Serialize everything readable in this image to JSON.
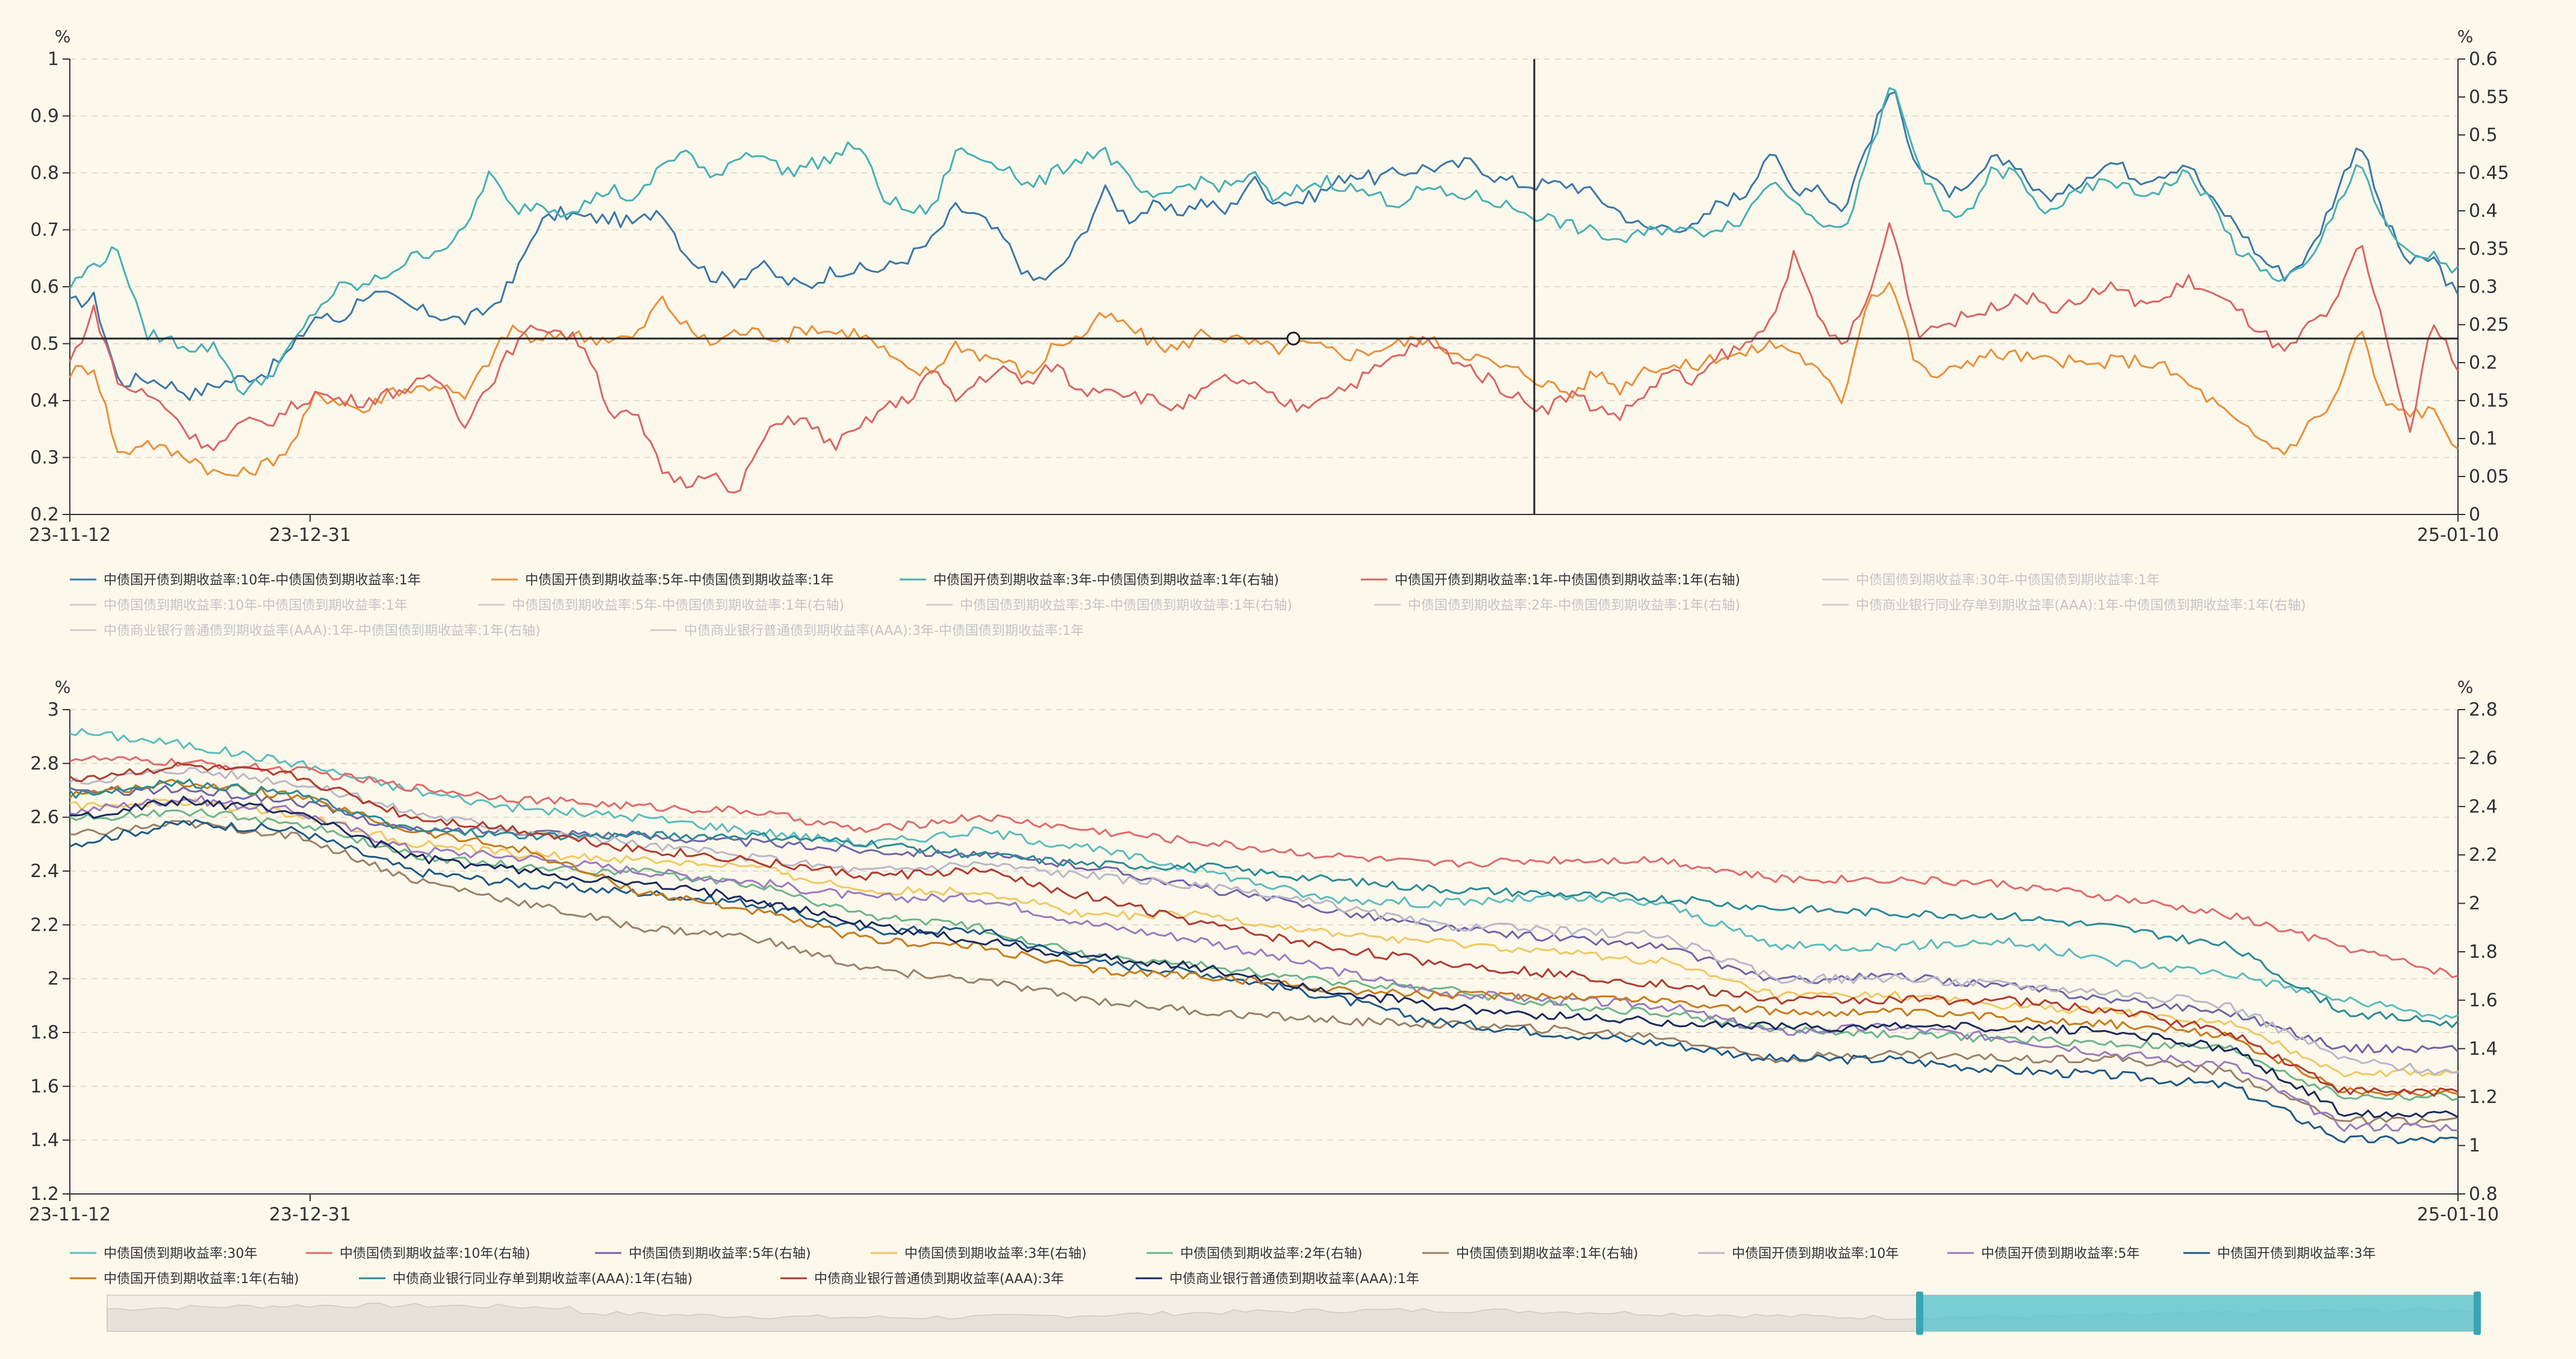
{
  "chart_data": [
    {
      "type": "line",
      "unit_left": "%",
      "unit_right": "%",
      "ylim_left": [
        0.2,
        1.0
      ],
      "yticks_left": [
        "0.2",
        "0.3",
        "0.4",
        "0.5",
        "0.6",
        "0.7",
        "0.8",
        "0.9",
        "1"
      ],
      "ylim_right": [
        0,
        0.6
      ],
      "yticks_right": [
        "0",
        "0.05",
        "0.1",
        "0.15",
        "0.2",
        "0.25",
        "0.3",
        "0.35",
        "0.4",
        "0.45",
        "0.5",
        "0.55",
        "0.6"
      ],
      "xticks": [
        "23-11-12",
        "23-12-31",
        "25-01-10"
      ],
      "x_start": "23-11-12",
      "x_end": "25-01-10",
      "series": [
        {
          "name": "中债国开债到期收益率:10年-中债国债到期收益率:1年",
          "color": "#3a78a8",
          "axis": "left",
          "active": true,
          "anchors": [
            0.57,
            0.58,
            0.43,
            0.44,
            0.43,
            0.41,
            0.43,
            0.44,
            0.45,
            0.49,
            0.55,
            0.54,
            0.59,
            0.58,
            0.56,
            0.55,
            0.54,
            0.56,
            0.61,
            0.71,
            0.73,
            0.72,
            0.72,
            0.71,
            0.74,
            0.66,
            0.62,
            0.61,
            0.64,
            0.61,
            0.6,
            0.63,
            0.63,
            0.63,
            0.65,
            0.68,
            0.74,
            0.72,
            0.68,
            0.61,
            0.62,
            0.68,
            0.77,
            0.72,
            0.74,
            0.73,
            0.75,
            0.73,
            0.79,
            0.75,
            0.75,
            0.77,
            0.8,
            0.79,
            0.8,
            0.81,
            0.81,
            0.82,
            0.79,
            0.78,
            0.78,
            0.78,
            0.76,
            0.73,
            0.7,
            0.71,
            0.7,
            0.75,
            0.76,
            0.84,
            0.77,
            0.78,
            0.73,
            0.85,
            0.95,
            0.82,
            0.77,
            0.76,
            0.82,
            0.82,
            0.76,
            0.76,
            0.8,
            0.82,
            0.79,
            0.8,
            0.82,
            0.75,
            0.71,
            0.65,
            0.62,
            0.66,
            0.76,
            0.86,
            0.72,
            0.64,
            0.65,
            0.58
          ]
        },
        {
          "name": "中债国开债到期收益率:5年-中债国债到期收益率:1年",
          "color": "#e8903a",
          "axis": "left",
          "active": true,
          "anchors": [
            0.45,
            0.46,
            0.3,
            0.33,
            0.31,
            0.3,
            0.27,
            0.27,
            0.29,
            0.32,
            0.41,
            0.4,
            0.38,
            0.42,
            0.42,
            0.43,
            0.4,
            0.47,
            0.53,
            0.5,
            0.52,
            0.51,
            0.51,
            0.51,
            0.58,
            0.53,
            0.5,
            0.52,
            0.52,
            0.51,
            0.53,
            0.52,
            0.52,
            0.49,
            0.45,
            0.45,
            0.5,
            0.48,
            0.47,
            0.44,
            0.5,
            0.51,
            0.55,
            0.53,
            0.5,
            0.49,
            0.52,
            0.51,
            0.5,
            0.49,
            0.5,
            0.49,
            0.48,
            0.49,
            0.5,
            0.51,
            0.49,
            0.48,
            0.46,
            0.45,
            0.43,
            0.41,
            0.45,
            0.42,
            0.46,
            0.46,
            0.46,
            0.48,
            0.48,
            0.5,
            0.49,
            0.45,
            0.4,
            0.58,
            0.61,
            0.46,
            0.44,
            0.47,
            0.48,
            0.48,
            0.47,
            0.47,
            0.46,
            0.47,
            0.47,
            0.46,
            0.43,
            0.4,
            0.36,
            0.33,
            0.31,
            0.36,
            0.4,
            0.53,
            0.39,
            0.38,
            0.38,
            0.32
          ]
        },
        {
          "name": "中债国开债到期收益率:3年-中债国债到期收益率:1年(右轴)",
          "color": "#46b0b4",
          "axis": "right",
          "active": true,
          "anchors": [
            0.3,
            0.33,
            0.35,
            0.24,
            0.23,
            0.22,
            0.22,
            0.16,
            0.18,
            0.22,
            0.27,
            0.3,
            0.3,
            0.32,
            0.34,
            0.35,
            0.37,
            0.45,
            0.4,
            0.41,
            0.4,
            0.41,
            0.43,
            0.41,
            0.46,
            0.48,
            0.44,
            0.47,
            0.48,
            0.45,
            0.46,
            0.47,
            0.49,
            0.42,
            0.4,
            0.4,
            0.48,
            0.47,
            0.46,
            0.43,
            0.45,
            0.47,
            0.48,
            0.44,
            0.41,
            0.43,
            0.44,
            0.43,
            0.45,
            0.41,
            0.43,
            0.44,
            0.43,
            0.42,
            0.41,
            0.43,
            0.42,
            0.42,
            0.41,
            0.4,
            0.39,
            0.38,
            0.37,
            0.36,
            0.37,
            0.38,
            0.37,
            0.38,
            0.39,
            0.44,
            0.42,
            0.39,
            0.37,
            0.46,
            0.57,
            0.47,
            0.4,
            0.39,
            0.45,
            0.45,
            0.4,
            0.41,
            0.43,
            0.44,
            0.42,
            0.43,
            0.45,
            0.41,
            0.35,
            0.32,
            0.31,
            0.33,
            0.4,
            0.47,
            0.38,
            0.34,
            0.34,
            0.32
          ]
        },
        {
          "name": "中债国开债到期收益率:1年-中债国债到期收益率:1年(右轴)",
          "color": "#d96565",
          "axis": "right",
          "active": true,
          "anchors": [
            0.2,
            0.27,
            0.17,
            0.16,
            0.14,
            0.1,
            0.09,
            0.12,
            0.12,
            0.14,
            0.16,
            0.15,
            0.15,
            0.16,
            0.17,
            0.18,
            0.12,
            0.17,
            0.22,
            0.25,
            0.24,
            0.22,
            0.13,
            0.13,
            0.06,
            0.04,
            0.06,
            0.02,
            0.09,
            0.13,
            0.12,
            0.09,
            0.11,
            0.14,
            0.15,
            0.19,
            0.15,
            0.18,
            0.19,
            0.17,
            0.2,
            0.16,
            0.17,
            0.16,
            0.15,
            0.14,
            0.16,
            0.18,
            0.17,
            0.15,
            0.14,
            0.16,
            0.17,
            0.19,
            0.21,
            0.23,
            0.21,
            0.19,
            0.17,
            0.15,
            0.14,
            0.16,
            0.14,
            0.13,
            0.16,
            0.19,
            0.17,
            0.21,
            0.22,
            0.25,
            0.34,
            0.26,
            0.22,
            0.28,
            0.39,
            0.24,
            0.25,
            0.26,
            0.27,
            0.29,
            0.28,
            0.27,
            0.29,
            0.3,
            0.28,
            0.28,
            0.31,
            0.29,
            0.27,
            0.24,
            0.21,
            0.25,
            0.27,
            0.36,
            0.25,
            0.1,
            0.26,
            0.19
          ]
        }
      ],
      "legend_inactive": [
        "中债国债到期收益率:30年-中债国债到期收益率:1年",
        "中债国债到期收益率:10年-中债国债到期收益率:1年",
        "中债国债到期收益率:5年-中债国债到期收益率:1年(右轴)",
        "中债国债到期收益率:3年-中债国债到期收益率:1年(右轴)",
        "中债国债到期收益率:2年-中债国债到期收益率:1年(右轴)",
        "中债商业银行同业存单到期收益率(AAA):1年-中债国债到期收益率:1年(右轴)",
        "中债商业银行普通债到期收益率(AAA):1年-中债国债到期收益率:1年(右轴)",
        "中债商业银行普通债到期收益率(AAA):3年-中债国债到期收益率:1年"
      ]
    },
    {
      "type": "line",
      "unit_left": "%",
      "unit_right": "%",
      "ylim_left": [
        1.2,
        3.0
      ],
      "yticks_left": [
        "1.2",
        "1.4",
        "1.6",
        "1.8",
        "2",
        "2.2",
        "2.4",
        "2.6",
        "2.8",
        "3"
      ],
      "ylim_right": [
        0.8,
        2.8
      ],
      "yticks_right": [
        "0.8",
        "1",
        "1.2",
        "1.4",
        "1.6",
        "1.8",
        "2",
        "2.2",
        "2.4",
        "2.6",
        "2.8"
      ],
      "xticks": [
        "23-11-12",
        "23-12-31",
        "25-01-10"
      ],
      "x_start": "23-11-12",
      "x_end": "25-01-10",
      "series": [
        {
          "name": "中债国债到期收益率:30年",
          "color": "#5bbcbc",
          "axis": "left",
          "base": [
            2.92,
            2.87,
            2.8,
            2.7,
            2.63,
            2.6,
            2.55,
            2.5,
            2.55,
            2.48,
            2.4,
            2.3,
            2.28,
            2.3,
            2.28,
            2.12,
            2.12,
            2.14,
            2.06,
            2.02,
            1.92,
            1.85
          ]
        },
        {
          "name": "中债国债到期收益率:10年(右轴)",
          "color": "#e06a6a",
          "axis": "right",
          "base": [
            2.6,
            2.58,
            2.55,
            2.48,
            2.43,
            2.4,
            2.38,
            2.3,
            2.36,
            2.3,
            2.25,
            2.2,
            2.16,
            2.18,
            2.18,
            2.1,
            2.1,
            2.08,
            2.02,
            1.95,
            1.82,
            1.7
          ]
        },
        {
          "name": "中债国债到期收益率:5年(右轴)",
          "color": "#6f64a8",
          "axis": "right",
          "base": [
            2.46,
            2.47,
            2.42,
            2.3,
            2.3,
            2.28,
            2.25,
            2.22,
            2.2,
            2.15,
            2.06,
            1.98,
            1.9,
            1.86,
            1.82,
            1.68,
            1.7,
            1.66,
            1.6,
            1.55,
            1.4,
            1.4
          ]
        },
        {
          "name": "中债国债到期收益率:3年(右轴)",
          "color": "#f0c860",
          "axis": "right",
          "base": [
            2.4,
            2.42,
            2.37,
            2.25,
            2.2,
            2.18,
            2.15,
            2.05,
            2.05,
            1.95,
            1.95,
            1.88,
            1.84,
            1.8,
            1.76,
            1.62,
            1.62,
            1.58,
            1.55,
            1.5,
            1.3,
            1.3
          ]
        },
        {
          "name": "中债国债到期收益率:2年(右轴)",
          "color": "#6bb58a",
          "axis": "right",
          "base": [
            2.35,
            2.38,
            2.33,
            2.2,
            2.15,
            2.13,
            2.08,
            1.95,
            1.9,
            1.78,
            1.74,
            1.68,
            1.65,
            1.58,
            1.55,
            1.48,
            1.46,
            1.44,
            1.42,
            1.4,
            1.2,
            1.2
          ]
        },
        {
          "name": "中债国债到期收益率:1年(右轴)",
          "color": "#9a8068",
          "axis": "right",
          "base": [
            2.28,
            2.33,
            2.28,
            2.1,
            2.0,
            1.9,
            1.86,
            1.73,
            1.68,
            1.6,
            1.55,
            1.52,
            1.5,
            1.48,
            1.45,
            1.36,
            1.38,
            1.36,
            1.36,
            1.3,
            1.1,
            1.1
          ]
        },
        {
          "name": "中债国开债到期收益率:10年",
          "color": "#b8b8c8",
          "axis": "left",
          "base": [
            2.73,
            2.78,
            2.73,
            2.62,
            2.55,
            2.5,
            2.45,
            2.4,
            2.43,
            2.38,
            2.34,
            2.28,
            2.2,
            2.18,
            2.16,
            2.0,
            2.0,
            1.98,
            1.95,
            1.9,
            1.7,
            1.65
          ]
        },
        {
          "name": "中债国开债到期收益率:5年",
          "color": "#9a7ac0",
          "axis": "left",
          "base": [
            2.62,
            2.67,
            2.62,
            2.48,
            2.45,
            2.4,
            2.36,
            2.3,
            2.3,
            2.2,
            2.14,
            2.04,
            1.95,
            1.92,
            1.9,
            1.8,
            1.82,
            1.78,
            1.72,
            1.68,
            1.45,
            1.45
          ]
        },
        {
          "name": "中债国开债到期收益率:3年",
          "color": "#1e5a88",
          "axis": "left",
          "base": [
            2.5,
            2.58,
            2.55,
            2.4,
            2.35,
            2.32,
            2.28,
            2.18,
            2.18,
            2.06,
            2.02,
            1.94,
            1.84,
            1.8,
            1.76,
            1.7,
            1.7,
            1.66,
            1.64,
            1.6,
            1.4,
            1.4
          ]
        },
        {
          "name": "中债国开债到期收益率:1年(右轴)",
          "color": "#c87a1a",
          "axis": "right",
          "base": [
            2.45,
            2.5,
            2.44,
            2.3,
            2.22,
            2.05,
            1.97,
            1.85,
            1.82,
            1.72,
            1.7,
            1.65,
            1.62,
            1.62,
            1.6,
            1.55,
            1.55,
            1.53,
            1.5,
            1.45,
            1.22,
            1.22
          ]
        },
        {
          "name": "中债商业银行同业存单到期收益率(AAA):1年(右轴)",
          "color": "#2a8a96",
          "axis": "right",
          "base": [
            2.45,
            2.5,
            2.45,
            2.3,
            2.28,
            2.28,
            2.28,
            2.25,
            2.2,
            2.16,
            2.15,
            2.1,
            2.06,
            2.04,
            2.02,
            1.98,
            1.96,
            1.95,
            1.9,
            1.82,
            1.55,
            1.5
          ]
        },
        {
          "name": "中债商业银行普通债到期收益率(AAA):3年",
          "color": "#b03a2e",
          "axis": "left",
          "base": [
            2.74,
            2.79,
            2.75,
            2.6,
            2.55,
            2.48,
            2.44,
            2.38,
            2.4,
            2.3,
            2.2,
            2.12,
            2.06,
            2.02,
            1.98,
            1.92,
            1.92,
            1.92,
            1.88,
            1.8,
            1.58,
            1.58
          ]
        },
        {
          "name": "中债商业银行普通债到期收益率(AAA):1年",
          "color": "#1a2a5e",
          "axis": "left",
          "base": [
            2.6,
            2.66,
            2.62,
            2.45,
            2.4,
            2.35,
            2.3,
            2.2,
            2.14,
            2.08,
            2.04,
            1.96,
            1.9,
            1.86,
            1.84,
            1.82,
            1.82,
            1.82,
            1.8,
            1.74,
            1.5,
            1.5
          ]
        }
      ]
    }
  ]
}
